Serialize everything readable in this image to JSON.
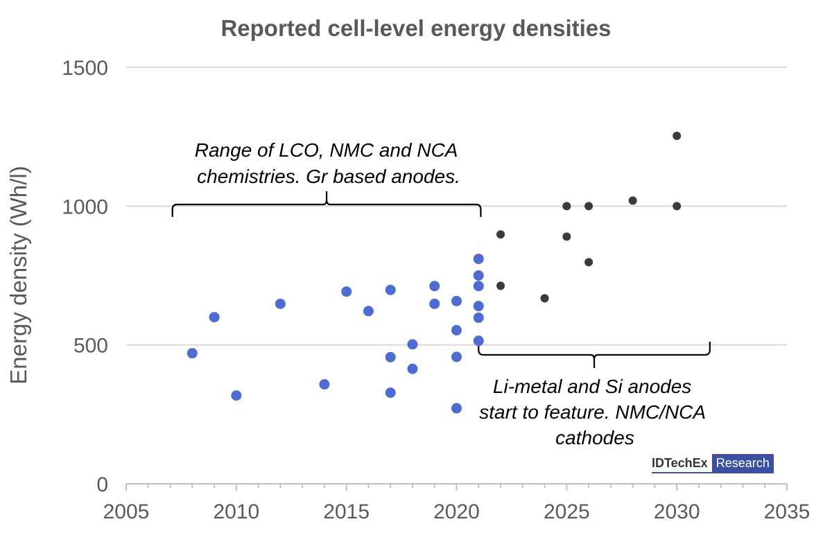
{
  "chart_data": {
    "type": "scatter",
    "title": "Reported cell-level energy densities",
    "xlabel": "",
    "ylabel": "Energy density (Wh/l)",
    "xlim": [
      2005,
      2035
    ],
    "ylim": [
      0,
      1500
    ],
    "x_ticks": [
      "2005",
      "2010",
      "2015",
      "2020",
      "2025",
      "2030",
      "2035"
    ],
    "y_ticks": [
      "0",
      "500",
      "1000",
      "1500"
    ],
    "grid": true,
    "colors": {
      "reported": "#4d6bd1",
      "projected": "#3a3a3a"
    },
    "series": [
      {
        "color_key": "reported",
        "points": [
          [
            2008,
            470
          ],
          [
            2009,
            600
          ],
          [
            2010,
            318
          ],
          [
            2012,
            648
          ],
          [
            2014,
            358
          ],
          [
            2015,
            692
          ],
          [
            2016,
            622
          ],
          [
            2017,
            698
          ],
          [
            2017,
            456
          ],
          [
            2017,
            328
          ],
          [
            2018,
            502
          ],
          [
            2018,
            414
          ],
          [
            2019,
            712
          ],
          [
            2019,
            648
          ],
          [
            2020,
            658
          ],
          [
            2020,
            553
          ],
          [
            2020,
            457
          ],
          [
            2020,
            272
          ],
          [
            2021,
            810
          ],
          [
            2021,
            750
          ],
          [
            2021,
            712
          ],
          [
            2021,
            640
          ],
          [
            2021,
            598
          ],
          [
            2021,
            515
          ]
        ]
      },
      {
        "color_key": "projected",
        "points": [
          [
            2022,
            898
          ],
          [
            2022,
            713
          ],
          [
            2024,
            668
          ],
          [
            2025,
            1000
          ],
          [
            2025,
            890
          ],
          [
            2026,
            1000
          ],
          [
            2026,
            798
          ],
          [
            2028,
            1020
          ],
          [
            2030,
            1253
          ],
          [
            2030,
            1000
          ]
        ]
      }
    ],
    "annotations": [
      {
        "lines": [
          "Range of LCO, NMC and NCA",
          "chemistries. Gr based anodes."
        ],
        "x_range": [
          2007.1,
          2021.1
        ]
      },
      {
        "lines": [
          "Li-metal and Si anodes",
          "start to feature. NMC/NCA",
          "cathodes"
        ],
        "x_range": [
          2021.0,
          2031.5
        ]
      }
    ]
  },
  "branding": {
    "name": "IDTechEx",
    "tag": "Research"
  }
}
